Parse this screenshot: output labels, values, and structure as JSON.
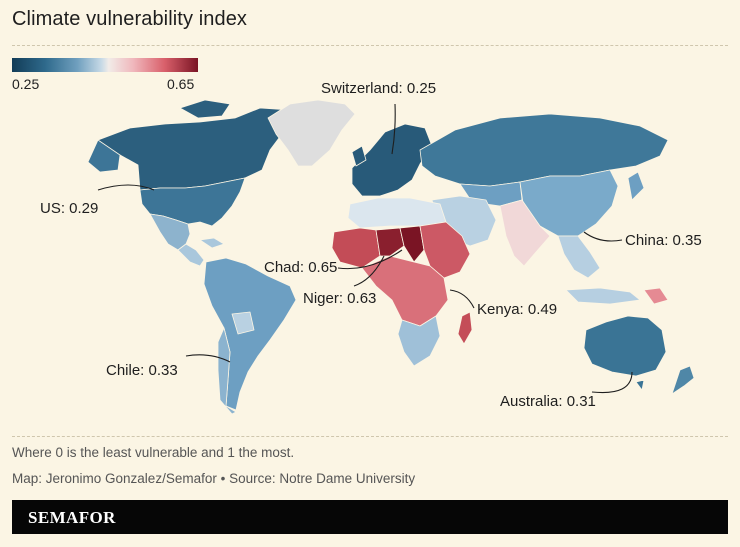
{
  "title": "Climate vulnerability index",
  "legend": {
    "min_label": "0.25",
    "max_label": "0.65",
    "colors": [
      "#123c57",
      "#6f9fbe",
      "#f1ece8",
      "#d9606b",
      "#7a1424"
    ]
  },
  "annotations": {
    "switzerland": "Switzerland: 0.25",
    "us": "US: 0.29",
    "china": "China: 0.35",
    "chad": "Chad: 0.65",
    "niger": "Niger: 0.63",
    "kenya": "Kenya: 0.49",
    "chile": "Chile: 0.33",
    "australia": "Australia: 0.31"
  },
  "footnote": "Where 0 is the least vulnerable and 1 the most.",
  "credit": "Map: Jeronimo Gonzalez/Semafor • Source: Notre Dame University",
  "brand": "SEMAFOR",
  "regions": {
    "canada": "#2c5f7e",
    "usa": "#3d7597",
    "greenland": "#dedede",
    "mexico": "#8db3cd",
    "central_america": "#a9c7dc",
    "south_america": "#6d9fc2",
    "chile": "#8bb3cf",
    "europe": "#285a79",
    "russia": "#3f7899",
    "china": "#7aaaca",
    "india": "#f1d8d8",
    "middle_east": "#b9d1e2",
    "north_africa": "#dbe6ee",
    "sahel": "#c34c57",
    "chad": "#7a1424",
    "niger": "#8a1f2e",
    "central_africa": "#d9707a",
    "east_africa": "#cc5965",
    "southern_africa": "#9fc0d8",
    "madagascar": "#c44d58",
    "southeast_asia": "#b6cfe1",
    "australia": "#3a7495",
    "new_zealand": "#4f87a7",
    "png": "#e58a93"
  }
}
